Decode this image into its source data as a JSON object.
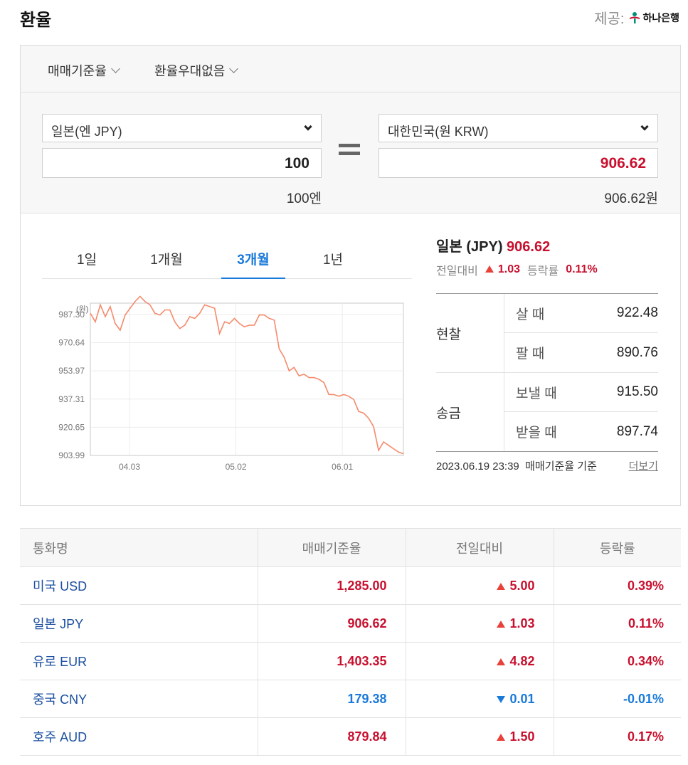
{
  "header": {
    "title": "환율",
    "provider_label": "제공:",
    "provider_name": "하나은행"
  },
  "options": {
    "rate_type": "매매기준율",
    "discount": "환율우대없음"
  },
  "converter": {
    "from_currency": "일본(엔 JPY)",
    "from_amount": "100",
    "from_unit_text": "100엔",
    "to_currency": "대한민국(원 KRW)",
    "to_amount": "906.62",
    "to_unit_text": "906.62원"
  },
  "tabs": [
    {
      "label": "1일"
    },
    {
      "label": "1개월"
    },
    {
      "label": "3개월",
      "active": true
    },
    {
      "label": "1년"
    }
  ],
  "chart_data": {
    "type": "line",
    "unit_label": "(원)",
    "ylabel": "",
    "xlabel": "",
    "yticks": [
      "987.30",
      "970.64",
      "953.97",
      "937.31",
      "920.65",
      "903.99"
    ],
    "xticks": [
      "04.03",
      "05.02",
      "06.01"
    ],
    "ylim": [
      903.99,
      994
    ],
    "color": "#f58a6b",
    "values": [
      988,
      983,
      993,
      986,
      992,
      982,
      978,
      987,
      991,
      995,
      998,
      995,
      993,
      988,
      987,
      990,
      990,
      983,
      979,
      981,
      986,
      985,
      988,
      993,
      992,
      991,
      976,
      983,
      982,
      985,
      982,
      980,
      981,
      981,
      987,
      987,
      985,
      984,
      967,
      962,
      954,
      956,
      951,
      952,
      950,
      950,
      949,
      947,
      940,
      940,
      939,
      940,
      939,
      937,
      930,
      929,
      926,
      921,
      907,
      912,
      910,
      908,
      906,
      905
    ]
  },
  "quote": {
    "name": "일본 (JPY)",
    "value": "906.62",
    "change_label": "전일대비",
    "change": "1.03",
    "rate_label": "등락률",
    "rate": "0.11%"
  },
  "rates": {
    "cash_label": "현찰",
    "buy_label": "살 때",
    "buy": "922.48",
    "sell_label": "팔 때",
    "sell": "890.76",
    "remit_label": "송금",
    "send_label": "보낼 때",
    "send": "915.50",
    "receive_label": "받을 때",
    "receive": "897.74"
  },
  "footer": {
    "timestamp": "2023.06.19 23:39",
    "basis": "매매기준율 기준",
    "more": "더보기"
  },
  "table": {
    "headers": [
      "통화명",
      "매매기준율",
      "전일대비",
      "등락률"
    ],
    "rows": [
      {
        "name": "미국 USD",
        "rate": "1,285.00",
        "change": "5.00",
        "pct": "0.39%",
        "dir": "up"
      },
      {
        "name": "일본 JPY",
        "rate": "906.62",
        "change": "1.03",
        "pct": "0.11%",
        "dir": "up"
      },
      {
        "name": "유로 EUR",
        "rate": "1,403.35",
        "change": "4.82",
        "pct": "0.34%",
        "dir": "up"
      },
      {
        "name": "중국 CNY",
        "rate": "179.38",
        "change": "0.01",
        "pct": "-0.01%",
        "dir": "down"
      },
      {
        "name": "호주 AUD",
        "rate": "879.84",
        "change": "1.50",
        "pct": "0.17%",
        "dir": "up"
      }
    ]
  }
}
